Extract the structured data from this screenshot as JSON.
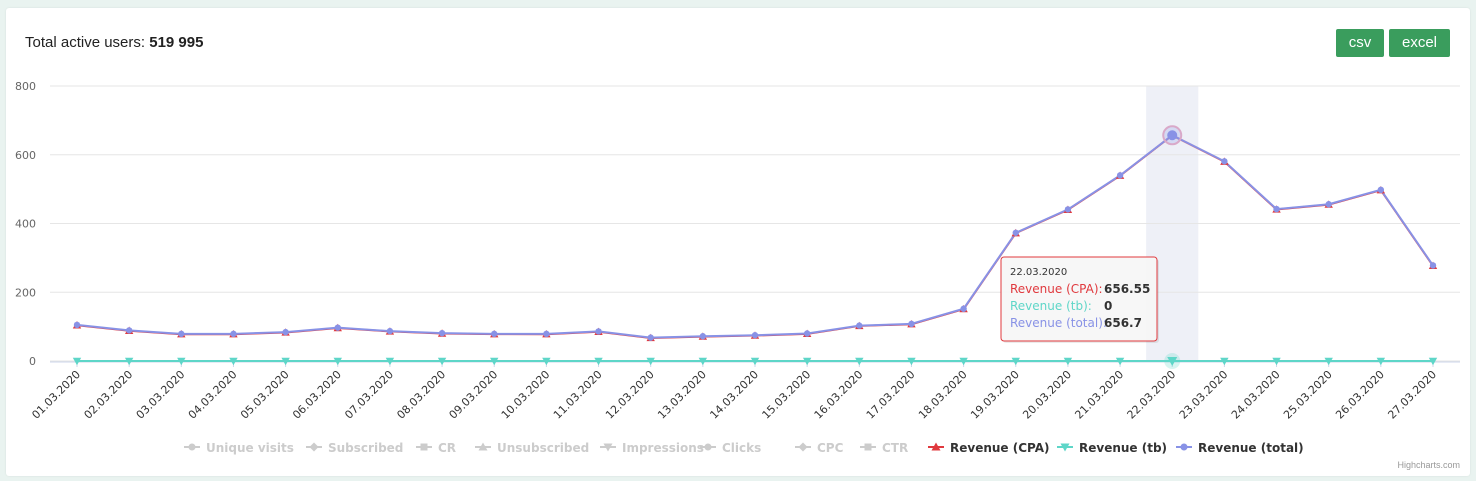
{
  "header": {
    "title_prefix": "Total active users:",
    "total_users": "519 995"
  },
  "toolbar": {
    "csv_label": "csv",
    "excel_label": "excel"
  },
  "credits": "Highcharts.com",
  "colors": {
    "cpa": "#e0393e",
    "tb": "#5ed6c8",
    "total": "#8892e6",
    "inactive": "#cccccc",
    "button": "#3a9d5d"
  },
  "chart_data": {
    "type": "line",
    "categories": [
      "01.03.2020",
      "02.03.2020",
      "03.03.2020",
      "04.03.2020",
      "05.03.2020",
      "06.03.2020",
      "07.03.2020",
      "08.03.2020",
      "09.03.2020",
      "10.03.2020",
      "11.03.2020",
      "12.03.2020",
      "13.03.2020",
      "14.03.2020",
      "15.03.2020",
      "16.03.2020",
      "17.03.2020",
      "18.03.2020",
      "19.03.2020",
      "20.03.2020",
      "21.03.2020",
      "22.03.2020",
      "23.03.2020",
      "24.03.2020",
      "25.03.2020",
      "26.03.2020",
      "27.03.2020"
    ],
    "ylim": [
      0,
      800
    ],
    "yticks": [
      0,
      200,
      400,
      600,
      800
    ],
    "grid": true,
    "legend_placement": "bottom-center",
    "series": [
      {
        "name": "Revenue (CPA)",
        "color": "#e0393e",
        "marker": "triangle",
        "values": [
          104,
          88,
          78,
          78,
          83,
          96,
          86,
          80,
          78,
          78,
          85,
          67,
          71,
          74,
          79,
          102,
          107,
          151,
          372,
          440,
          539,
          656.55,
          580,
          441,
          455,
          497,
          277
        ]
      },
      {
        "name": "Revenue (tb)",
        "color": "#5ed6c8",
        "marker": "triangle-down",
        "values": [
          0,
          0,
          0,
          0,
          0,
          0,
          0,
          0,
          0,
          0,
          0,
          0,
          0,
          0,
          0,
          0,
          0,
          0,
          0,
          0,
          0,
          0,
          0,
          0,
          0,
          0,
          0
        ]
      },
      {
        "name": "Revenue (total)",
        "color": "#8892e6",
        "marker": "circle",
        "values": [
          105,
          89,
          79,
          79,
          84,
          97,
          87,
          81,
          79,
          79,
          86,
          68,
          72,
          75,
          80,
          103,
          108,
          152,
          373,
          441,
          540,
          656.7,
          581,
          442,
          456,
          498,
          278
        ]
      }
    ],
    "legend": [
      {
        "name": "Unique visits",
        "marker": "circle",
        "active": false
      },
      {
        "name": "Subscribed",
        "marker": "diamond",
        "active": false
      },
      {
        "name": "CR",
        "marker": "square",
        "active": false
      },
      {
        "name": "Unsubscribed",
        "marker": "triangle",
        "active": false
      },
      {
        "name": "Impressions",
        "marker": "triangle-down",
        "active": false
      },
      {
        "name": "Clicks",
        "marker": "circle",
        "active": false
      },
      {
        "name": "CPC",
        "marker": "diamond",
        "active": false
      },
      {
        "name": "CTR",
        "marker": "square",
        "active": false
      },
      {
        "name": "Revenue (CPA)",
        "marker": "triangle",
        "active": true,
        "color": "#e0393e"
      },
      {
        "name": "Revenue (tb)",
        "marker": "triangle-down",
        "active": true,
        "color": "#5ed6c8"
      },
      {
        "name": "Revenue (total)",
        "marker": "circle",
        "active": true,
        "color": "#8892e6"
      }
    ],
    "tooltip": {
      "category": "22.03.2020",
      "rows": [
        {
          "label": "Revenue (CPA):",
          "value": "656.55",
          "color": "#e0393e"
        },
        {
          "label": "Revenue (tb):",
          "value": "0",
          "color": "#5ed6c8"
        },
        {
          "label": "Revenue (total):",
          "value": "656.7",
          "color": "#8892e6"
        }
      ]
    }
  }
}
